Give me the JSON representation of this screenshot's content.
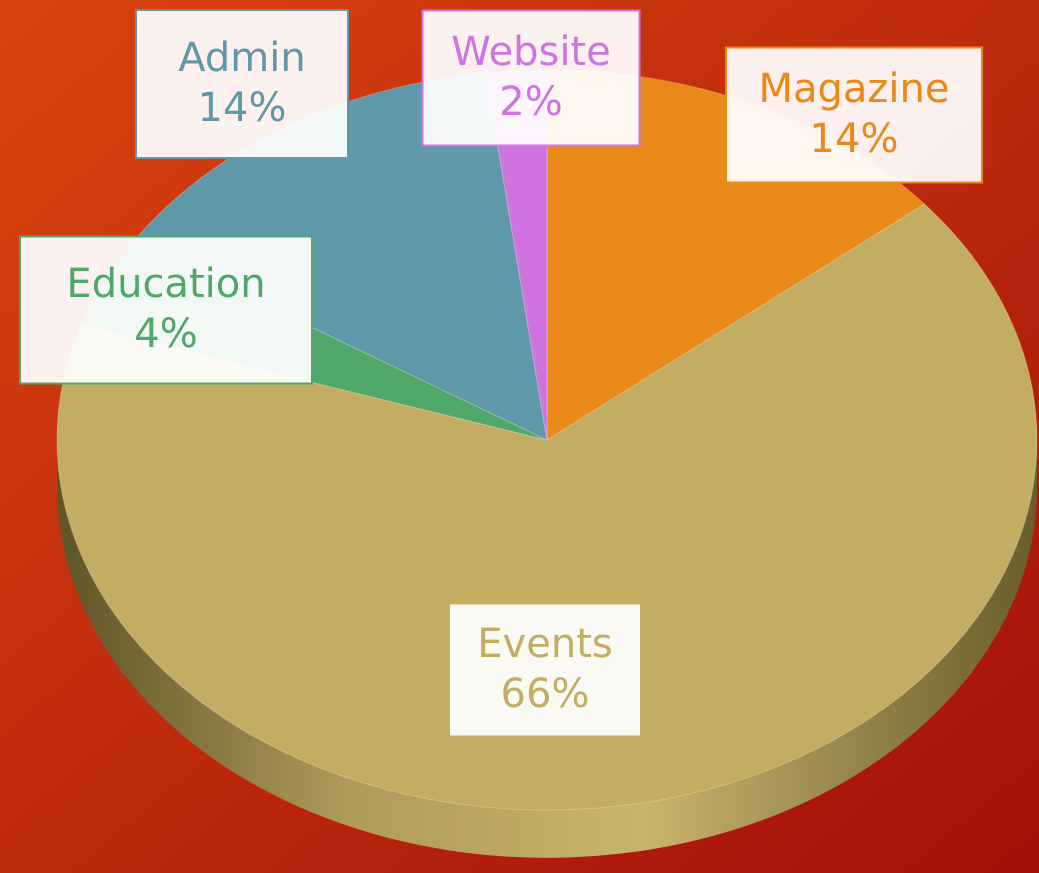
{
  "chart_data": {
    "type": "pie",
    "categories": [
      "Magazine",
      "Events",
      "Education",
      "Admin",
      "Website"
    ],
    "values": [
      14,
      66,
      4,
      14,
      2
    ],
    "value_labels": [
      "14%",
      "66%",
      "4%",
      "14%",
      "2%"
    ],
    "colors": [
      "#e8891a",
      "#c3ad62",
      "#4fa86a",
      "#5f98a8",
      "#cf73e0"
    ]
  }
}
